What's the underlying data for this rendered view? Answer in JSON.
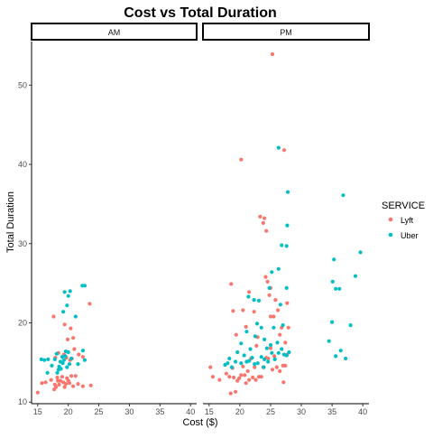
{
  "chart_data": {
    "type": "scatter",
    "title": "Cost vs Total Duration",
    "xlabel": "Cost ($)",
    "ylabel": "Total Duration",
    "legend_title": "SERVICE",
    "legend_position": "right",
    "grid": false,
    "xlim": [
      14,
      41
    ],
    "ylim": [
      9.8,
      55.5
    ],
    "x_ticks": [
      15,
      20,
      25,
      30,
      35,
      40
    ],
    "y_ticks": [
      10,
      20,
      30,
      40,
      50
    ],
    "colors": {
      "Lyft": "#F8766D",
      "Uber": "#00BFC4"
    },
    "panels": [
      {
        "label": "AM",
        "series": [
          {
            "name": "Lyft",
            "points": [
              [
                15,
                11.2
              ],
              [
                15.7,
                12.4
              ],
              [
                16.3,
                12.5
              ],
              [
                17.2,
                12.8
              ],
              [
                17.7,
                11.6
              ],
              [
                17.8,
                12.2
              ],
              [
                18,
                11.9
              ],
              [
                18.2,
                13.1
              ],
              [
                18.3,
                12.7
              ],
              [
                18.5,
                12.2
              ],
              [
                18.7,
                12.7
              ],
              [
                19,
                13.2
              ],
              [
                19.2,
                12.5
              ],
              [
                19.4,
                11.9
              ],
              [
                19.6,
                12.3
              ],
              [
                19.8,
                13
              ],
              [
                20,
                12.7
              ],
              [
                20.2,
                12.4
              ],
              [
                20.5,
                13.3
              ],
              [
                20.8,
                12
              ],
              [
                21.2,
                13.3
              ],
              [
                21.6,
                12.3
              ],
              [
                22.4,
                12
              ],
              [
                23.7,
                12.1
              ],
              [
                17.9,
                15.6
              ],
              [
                18.4,
                16.2
              ],
              [
                19.3,
                16
              ],
              [
                19.7,
                15.6
              ],
              [
                19.9,
                17.9
              ],
              [
                20.3,
                15.3
              ],
              [
                20.6,
                15.5
              ],
              [
                21,
                16.7
              ],
              [
                21.7,
                16
              ],
              [
                22.4,
                15.7
              ],
              [
                17.6,
                20.8
              ],
              [
                19.4,
                19.8
              ],
              [
                20.4,
                19.3
              ],
              [
                20.8,
                18.1
              ],
              [
                23.5,
                22.4
              ]
            ]
          },
          {
            "name": "Uber",
            "points": [
              [
                15.6,
                15.4
              ],
              [
                16.1,
                15.3
              ],
              [
                16.7,
                15.4
              ],
              [
                17.3,
                14.6
              ],
              [
                17.8,
                15.4
              ],
              [
                18.2,
                13.7
              ],
              [
                18.4,
                14.1
              ],
              [
                18.5,
                14.5
              ],
              [
                18.7,
                15.1
              ],
              [
                18.8,
                14.2
              ],
              [
                19,
                15.7
              ],
              [
                19.1,
                14.9
              ],
              [
                19.3,
                15.3
              ],
              [
                19.5,
                15.8
              ],
              [
                19.6,
                16.4
              ],
              [
                19.8,
                14.4
              ],
              [
                20,
                16.3
              ],
              [
                20.2,
                14.8
              ],
              [
                20.5,
                15.5
              ],
              [
                21.6,
                14.8
              ],
              [
                22.4,
                16.5
              ],
              [
                22.7,
                15.3
              ],
              [
                16.6,
                13.7
              ],
              [
                18.1,
                16.1
              ],
              [
                19.2,
                21.4
              ],
              [
                19.4,
                23.9
              ],
              [
                20,
                23.4
              ],
              [
                20.3,
                24
              ],
              [
                19.8,
                22.2
              ],
              [
                21.2,
                20.8
              ],
              [
                22.3,
                24.7
              ],
              [
                22.7,
                24.7
              ]
            ]
          }
        ]
      },
      {
        "label": "PM",
        "series": [
          {
            "name": "Lyft",
            "points": [
              [
                15.2,
                14.4
              ],
              [
                15.6,
                13.2
              ],
              [
                16.7,
                12.8
              ],
              [
                17.8,
                13.6
              ],
              [
                18.3,
                13.2
              ],
              [
                18.5,
                11.1
              ],
              [
                18.8,
                14.3
              ],
              [
                19,
                13.1
              ],
              [
                19.3,
                11.3
              ],
              [
                19.6,
                12.7
              ],
              [
                19.9,
                13
              ],
              [
                20.2,
                13.4
              ],
              [
                20.5,
                14.5
              ],
              [
                20.8,
                13.4
              ],
              [
                21,
                12.4
              ],
              [
                21.3,
                13.9
              ],
              [
                21.5,
                12.8
              ],
              [
                21.8,
                15.5
              ],
              [
                22.1,
                13.1
              ],
              [
                22.4,
                14.4
              ],
              [
                22.6,
                12.8
              ],
              [
                23.1,
                13.2
              ],
              [
                23.5,
                13.2
              ],
              [
                23.8,
                14.4
              ],
              [
                24.3,
                15.6
              ],
              [
                24.6,
                15.5
              ],
              [
                25,
                16.8
              ],
              [
                25.3,
                14.1
              ],
              [
                25.6,
                15.8
              ],
              [
                26,
                14.4
              ],
              [
                26.5,
                13.9
              ],
              [
                27,
                14.6
              ],
              [
                27.1,
                12.5
              ],
              [
                27.4,
                14.6
              ],
              [
                27.7,
                16
              ],
              [
                18.6,
                24.9
              ],
              [
                18.9,
                21.5
              ],
              [
                19.4,
                18.5
              ],
              [
                20.2,
                40.6
              ],
              [
                20.5,
                21.6
              ],
              [
                21,
                19.5
              ],
              [
                21.5,
                23.9
              ],
              [
                22.3,
                21.4
              ],
              [
                22.9,
                18.2
              ],
              [
                23.3,
                33.4
              ],
              [
                23.8,
                32.6
              ],
              [
                24,
                33.2
              ],
              [
                24.3,
                31.6
              ],
              [
                24.5,
                25.2
              ],
              [
                24.8,
                23.5
              ],
              [
                25,
                24.4
              ],
              [
                25.3,
                53.9
              ],
              [
                25.5,
                20.8
              ],
              [
                25.8,
                22.9
              ],
              [
                26.2,
                21.6
              ],
              [
                26.5,
                18.5
              ],
              [
                26.8,
                19.4
              ],
              [
                27.2,
                41.8
              ],
              [
                27.4,
                17.5
              ],
              [
                27.7,
                22.5
              ],
              [
                27.9,
                19.4
              ],
              [
                25,
                20.8
              ],
              [
                24.2,
                25.8
              ],
              [
                22.7,
                17.1
              ]
            ]
          },
          {
            "name": "Uber",
            "points": [
              [
                17.6,
                14.7
              ],
              [
                18,
                14.9
              ],
              [
                18.3,
                15.5
              ],
              [
                18.7,
                14.4
              ],
              [
                19.3,
                15.1
              ],
              [
                19.6,
                16.3
              ],
              [
                20.2,
                14.9
              ],
              [
                20.7,
                15.9
              ],
              [
                21.1,
                15.1
              ],
              [
                21.5,
                15.2
              ],
              [
                22,
                15.6
              ],
              [
                22.4,
                14.8
              ],
              [
                22.9,
                14.9
              ],
              [
                23.5,
                15.7
              ],
              [
                24,
                15.4
              ],
              [
                24.6,
                15.1
              ],
              [
                25.2,
                16.2
              ],
              [
                25.7,
                15.4
              ],
              [
                26.3,
                16.2
              ],
              [
                26.8,
                16.7
              ],
              [
                27.2,
                16
              ],
              [
                27.6,
                15.9
              ],
              [
                28,
                16.3
              ],
              [
                23.9,
                14.4
              ],
              [
                20.2,
                17.4
              ],
              [
                21.1,
                18.9
              ],
              [
                21.7,
                16.7
              ],
              [
                22.5,
                18.3
              ],
              [
                22.8,
                19.9
              ],
              [
                23.5,
                19.4
              ],
              [
                24,
                17.9
              ],
              [
                24.4,
                16.8
              ],
              [
                25,
                17.2
              ],
              [
                25.5,
                19.4
              ],
              [
                26.1,
                17.5
              ],
              [
                26.6,
                22.3
              ],
              [
                27,
                19.7
              ],
              [
                21.4,
                23.3
              ],
              [
                22.3,
                22.9
              ],
              [
                23.1,
                22.8
              ],
              [
                24.8,
                24.4
              ],
              [
                25.2,
                26.4
              ],
              [
                26.3,
                26.8
              ],
              [
                26.8,
                29.8
              ],
              [
                27.6,
                29.7
              ],
              [
                27.6,
                24.4
              ],
              [
                27.7,
                32.3
              ],
              [
                27.8,
                36.5
              ],
              [
                26.3,
                42.1
              ],
              [
                34.5,
                17.7
              ],
              [
                35,
                20.1
              ],
              [
                35.1,
                25.2
              ],
              [
                35.6,
                24.3
              ],
              [
                35.3,
                28
              ],
              [
                35.6,
                15.8
              ],
              [
                36.2,
                24.3
              ],
              [
                36.4,
                16.5
              ],
              [
                37.2,
                15.5
              ],
              [
                36.8,
                36.1
              ],
              [
                38,
                19.7
              ],
              [
                38.8,
                25.9
              ],
              [
                39.6,
                28.9
              ]
            ]
          }
        ]
      }
    ]
  }
}
